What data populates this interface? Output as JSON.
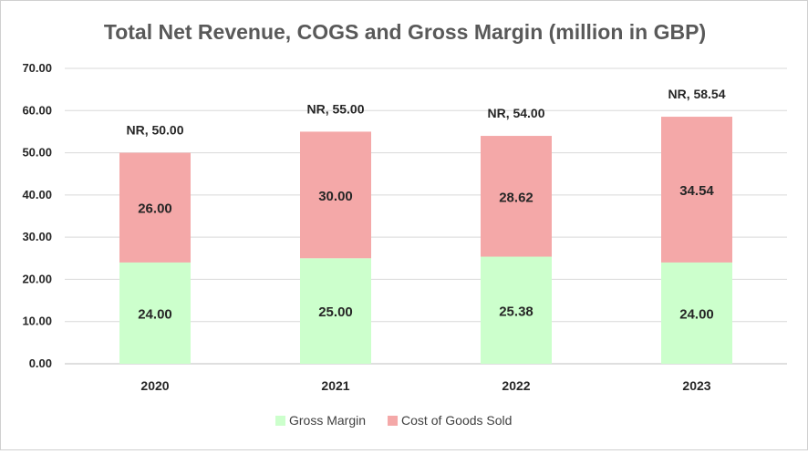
{
  "chart_data": {
    "type": "bar",
    "stacked": true,
    "title": "Total Net Revenue, COGS and Gross Margin (million in GBP)",
    "xlabel": "",
    "ylabel": "",
    "categories": [
      "2020",
      "2021",
      "2022",
      "2023"
    ],
    "series": [
      {
        "name": "Gross Margin",
        "values": [
          24.0,
          25.0,
          25.38,
          24.0
        ],
        "color": "#ccffcc",
        "labels": [
          "24.00",
          "25.00",
          "25.38",
          "24.00"
        ]
      },
      {
        "name": "Cost of Goods Sold",
        "values": [
          26.0,
          30.0,
          28.62,
          34.54
        ],
        "color": "#f4a8a8",
        "labels": [
          "26.00",
          "30.00",
          "28.62",
          "34.54"
        ]
      }
    ],
    "totals": [
      "NR, 50.00",
      "NR, 55.00",
      "NR, 54.00",
      "NR, 58.54"
    ],
    "ylim": [
      0,
      70
    ],
    "yticks": [
      "0.00",
      "10.00",
      "20.00",
      "30.00",
      "40.00",
      "50.00",
      "60.00",
      "70.00"
    ],
    "grid": true,
    "legend_position": "bottom"
  }
}
